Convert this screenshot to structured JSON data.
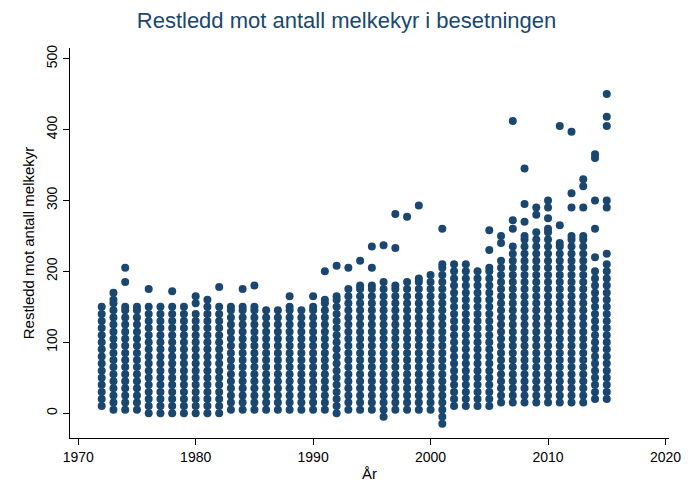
{
  "chart_data": {
    "type": "scatter",
    "title": "Restledd mot antall melkekyr i besetningen",
    "x_label": "År",
    "y_label": "Restledd mot antall melkekyr",
    "color": "#1a476f",
    "marker": "circle",
    "grid": false,
    "xlim": [
      1969.3,
      2020.3
    ],
    "xticks": [
      1970,
      1980,
      1990,
      2000,
      2010,
      2020
    ],
    "ylim": [
      -35,
      515
    ],
    "yticks": [
      0,
      100,
      200,
      300,
      400,
      500
    ],
    "x": [
      1972,
      1973,
      1974,
      1975,
      1976,
      1977,
      1978,
      1979,
      1980,
      1981,
      1982,
      1983,
      1984,
      1985,
      1986,
      1987,
      1988,
      1989,
      1990,
      1991,
      1992,
      1993,
      1994,
      1995,
      1996,
      1997,
      1998,
      1999,
      2000,
      2001,
      2002,
      2003,
      2004,
      2005,
      2006,
      2007,
      2008,
      2009,
      2010,
      2011,
      2012,
      2013,
      2014,
      2015
    ],
    "values": [
      [
        10,
        20,
        30,
        40,
        50,
        60,
        70,
        80,
        90,
        100,
        110,
        120,
        130,
        140,
        150
      ],
      [
        5,
        15,
        25,
        35,
        45,
        55,
        65,
        75,
        85,
        95,
        105,
        115,
        125,
        135,
        145,
        155,
        160,
        170
      ],
      [
        5,
        15,
        25,
        35,
        45,
        55,
        65,
        75,
        85,
        95,
        105,
        115,
        125,
        135,
        145,
        150,
        185,
        205
      ],
      [
        5,
        15,
        25,
        35,
        45,
        55,
        65,
        75,
        85,
        95,
        105,
        115,
        125,
        135,
        145,
        150
      ],
      [
        0,
        10,
        20,
        30,
        40,
        50,
        60,
        70,
        80,
        90,
        100,
        110,
        120,
        130,
        140,
        150,
        175
      ],
      [
        0,
        10,
        20,
        30,
        40,
        50,
        60,
        70,
        80,
        90,
        100,
        110,
        120,
        130,
        140,
        150
      ],
      [
        0,
        10,
        20,
        30,
        40,
        50,
        60,
        70,
        80,
        90,
        100,
        110,
        120,
        130,
        140,
        150,
        172
      ],
      [
        0,
        10,
        20,
        30,
        40,
        50,
        60,
        70,
        80,
        90,
        100,
        110,
        120,
        130,
        140,
        150
      ],
      [
        0,
        10,
        20,
        30,
        40,
        50,
        60,
        70,
        80,
        90,
        100,
        110,
        120,
        130,
        140,
        155,
        165
      ],
      [
        0,
        10,
        20,
        30,
        40,
        50,
        60,
        70,
        80,
        90,
        100,
        110,
        120,
        130,
        140,
        150,
        160
      ],
      [
        0,
        10,
        20,
        30,
        40,
        50,
        60,
        70,
        80,
        90,
        100,
        110,
        120,
        130,
        140,
        150,
        178
      ],
      [
        5,
        15,
        25,
        35,
        45,
        55,
        65,
        75,
        85,
        95,
        105,
        115,
        125,
        135,
        145,
        150
      ],
      [
        5,
        15,
        25,
        35,
        45,
        55,
        65,
        75,
        85,
        95,
        105,
        115,
        125,
        135,
        145,
        150,
        175
      ],
      [
        5,
        15,
        25,
        35,
        45,
        55,
        65,
        75,
        85,
        95,
        105,
        115,
        125,
        135,
        145,
        150,
        180
      ],
      [
        5,
        15,
        25,
        35,
        45,
        55,
        65,
        75,
        85,
        95,
        105,
        115,
        125,
        135,
        145
      ],
      [
        5,
        15,
        25,
        35,
        45,
        55,
        65,
        75,
        85,
        95,
        105,
        115,
        125,
        135,
        145
      ],
      [
        5,
        15,
        25,
        35,
        45,
        55,
        65,
        75,
        85,
        95,
        105,
        115,
        125,
        135,
        145,
        150,
        165
      ],
      [
        5,
        15,
        25,
        35,
        45,
        55,
        65,
        75,
        85,
        95,
        105,
        115,
        125,
        135,
        145
      ],
      [
        5,
        15,
        25,
        35,
        45,
        55,
        65,
        75,
        85,
        95,
        105,
        115,
        125,
        135,
        145,
        150,
        165
      ],
      [
        5,
        15,
        25,
        35,
        45,
        55,
        65,
        75,
        85,
        95,
        105,
        115,
        125,
        135,
        145,
        155,
        160,
        200
      ],
      [
        0,
        10,
        20,
        30,
        40,
        50,
        60,
        70,
        80,
        90,
        100,
        110,
        120,
        130,
        140,
        150,
        160,
        165,
        208
      ],
      [
        5,
        15,
        25,
        35,
        45,
        55,
        65,
        75,
        85,
        95,
        105,
        115,
        125,
        135,
        145,
        155,
        165,
        175,
        205
      ],
      [
        5,
        15,
        25,
        35,
        45,
        55,
        65,
        75,
        85,
        95,
        105,
        115,
        125,
        135,
        145,
        155,
        165,
        175,
        180,
        215
      ],
      [
        5,
        15,
        25,
        35,
        45,
        55,
        65,
        75,
        85,
        95,
        105,
        115,
        125,
        135,
        145,
        155,
        165,
        175,
        180,
        205,
        235
      ],
      [
        -5,
        5,
        15,
        25,
        35,
        45,
        55,
        65,
        75,
        85,
        95,
        105,
        115,
        125,
        135,
        145,
        155,
        165,
        175,
        185,
        237
      ],
      [
        5,
        15,
        25,
        35,
        45,
        55,
        65,
        75,
        85,
        95,
        105,
        115,
        125,
        135,
        145,
        155,
        165,
        175,
        180,
        233,
        281
      ],
      [
        5,
        15,
        25,
        35,
        45,
        55,
        65,
        75,
        85,
        95,
        105,
        115,
        125,
        135,
        145,
        155,
        165,
        175,
        185,
        277
      ],
      [
        5,
        15,
        25,
        35,
        45,
        55,
        65,
        75,
        85,
        95,
        105,
        115,
        125,
        135,
        145,
        155,
        165,
        175,
        185,
        190,
        293
      ],
      [
        5,
        15,
        25,
        35,
        45,
        55,
        65,
        75,
        85,
        95,
        105,
        115,
        125,
        135,
        145,
        155,
        165,
        175,
        185,
        195
      ],
      [
        -15,
        -5,
        5,
        15,
        25,
        35,
        45,
        55,
        65,
        75,
        85,
        95,
        105,
        115,
        125,
        135,
        145,
        155,
        165,
        175,
        185,
        195,
        205,
        210,
        260
      ],
      [
        10,
        20,
        30,
        40,
        50,
        60,
        70,
        80,
        90,
        100,
        110,
        120,
        130,
        140,
        150,
        160,
        170,
        180,
        190,
        200,
        210
      ],
      [
        10,
        20,
        30,
        40,
        50,
        60,
        70,
        80,
        90,
        100,
        110,
        120,
        130,
        140,
        150,
        160,
        170,
        180,
        190,
        200,
        210
      ],
      [
        10,
        20,
        30,
        40,
        50,
        60,
        70,
        80,
        90,
        100,
        110,
        120,
        130,
        140,
        150,
        160,
        170,
        180,
        190,
        200
      ],
      [
        10,
        20,
        30,
        40,
        50,
        60,
        70,
        80,
        90,
        100,
        110,
        120,
        130,
        140,
        150,
        160,
        170,
        180,
        190,
        200,
        205,
        230,
        258
      ],
      [
        15,
        25,
        35,
        45,
        55,
        65,
        75,
        85,
        95,
        105,
        115,
        125,
        135,
        145,
        155,
        165,
        175,
        185,
        195,
        205,
        215,
        240,
        250
      ],
      [
        15,
        25,
        35,
        45,
        55,
        65,
        75,
        85,
        95,
        105,
        115,
        125,
        135,
        145,
        155,
        165,
        175,
        185,
        195,
        205,
        215,
        225,
        235,
        260,
        272,
        412
      ],
      [
        15,
        25,
        35,
        45,
        55,
        65,
        75,
        85,
        95,
        105,
        115,
        125,
        135,
        145,
        155,
        165,
        175,
        185,
        195,
        205,
        215,
        225,
        235,
        245,
        250,
        270,
        295,
        345
      ],
      [
        15,
        25,
        35,
        45,
        55,
        65,
        75,
        85,
        95,
        105,
        115,
        125,
        135,
        145,
        155,
        165,
        175,
        185,
        195,
        205,
        215,
        225,
        235,
        245,
        255,
        280,
        290
      ],
      [
        15,
        25,
        35,
        45,
        55,
        65,
        75,
        85,
        95,
        105,
        115,
        125,
        135,
        145,
        155,
        165,
        175,
        185,
        195,
        205,
        215,
        225,
        235,
        245,
        255,
        260,
        275,
        290,
        300
      ],
      [
        15,
        25,
        35,
        45,
        55,
        65,
        75,
        85,
        95,
        105,
        115,
        125,
        135,
        145,
        155,
        165,
        175,
        185,
        195,
        205,
        215,
        225,
        235,
        240,
        265,
        405
      ],
      [
        15,
        25,
        35,
        45,
        55,
        65,
        75,
        85,
        95,
        105,
        115,
        125,
        135,
        145,
        155,
        165,
        175,
        185,
        195,
        205,
        215,
        225,
        235,
        245,
        250,
        290,
        310,
        397
      ],
      [
        15,
        25,
        35,
        45,
        55,
        65,
        75,
        85,
        95,
        105,
        115,
        125,
        135,
        145,
        155,
        165,
        175,
        185,
        195,
        205,
        215,
        225,
        235,
        245,
        250,
        290,
        320,
        330
      ],
      [
        20,
        30,
        40,
        50,
        60,
        70,
        80,
        90,
        100,
        110,
        120,
        130,
        140,
        150,
        160,
        170,
        180,
        190,
        200,
        220,
        260,
        300,
        360,
        365
      ],
      [
        20,
        30,
        40,
        50,
        60,
        70,
        80,
        90,
        100,
        110,
        120,
        130,
        140,
        150,
        160,
        170,
        180,
        190,
        200,
        210,
        225,
        290,
        300,
        405,
        418,
        450
      ]
    ]
  }
}
